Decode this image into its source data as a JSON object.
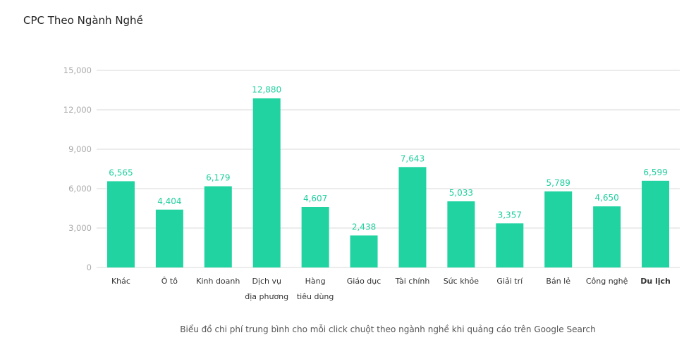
{
  "title": "CPC Theo Ngành Nghề",
  "caption": "Biểu đồ chi phí trung bình cho mỗi click chuột theo ngành nghề khi quảng cáo trên Google Search",
  "colors": {
    "bar": "#20d3a1",
    "data_label": "#1fcf9e",
    "grid": "#d9d9d9"
  },
  "chart_data": {
    "type": "bar",
    "title": "CPC Theo Ngành Nghề",
    "xlabel": "",
    "ylabel": "",
    "ylim": [
      0,
      15000
    ],
    "yticks": [
      0,
      3000,
      6000,
      9000,
      12000,
      15000
    ],
    "ytick_labels": [
      "0",
      "3,000",
      "6,000",
      "9,000",
      "12,000",
      "15,000"
    ],
    "grid": true,
    "legend": "none",
    "categories": [
      [
        "Khác"
      ],
      [
        "Ô tô"
      ],
      [
        "Kinh doanh"
      ],
      [
        "Dịch vụ",
        "địa phương"
      ],
      [
        "Hàng",
        "tiêu dùng"
      ],
      [
        "Giáo dục"
      ],
      [
        "Tài chính"
      ],
      [
        "Sức khỏe"
      ],
      [
        "Giải trí"
      ],
      [
        "Bán lẻ"
      ],
      [
        "Công nghệ"
      ],
      [
        "Du lịch"
      ]
    ],
    "bold_categories": [
      "Du lịch"
    ],
    "values": [
      6565,
      4404,
      6179,
      12880,
      4607,
      2438,
      7643,
      5033,
      3357,
      5789,
      4650,
      6599
    ],
    "data_labels": [
      "6,565",
      "4,404",
      "6,179",
      "12,880",
      "4,607",
      "2,438",
      "7,643",
      "5,033",
      "3,357",
      "5,789",
      "4,650",
      "6,599"
    ]
  }
}
